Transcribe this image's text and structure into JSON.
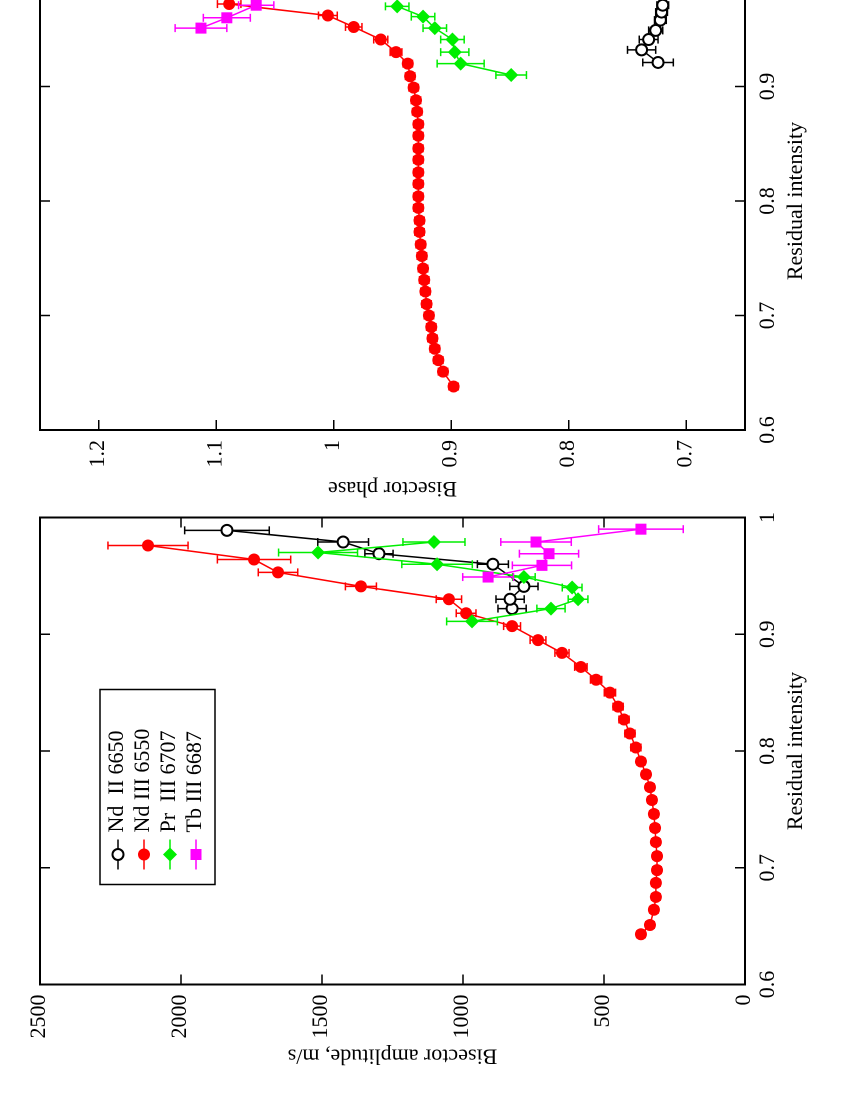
{
  "chart_data": [
    {
      "type": "line",
      "xlabel": "Residual intensity",
      "ylabel": "Bisector amplitude, m/s",
      "xlim": [
        0.6,
        1
      ],
      "xticks": [
        0.6,
        0.7,
        0.8,
        0.9,
        1
      ],
      "ylim": [
        0,
        2500
      ],
      "yticks": [
        0,
        500,
        1000,
        1500,
        2000,
        2500
      ],
      "grid": false,
      "legend": "upper left",
      "series": [
        {
          "name": "Nd  II 6650",
          "color": "#000000",
          "marker": "circle-open",
          "x": [
            0.922,
            0.93,
            0.941,
            0.96,
            0.969,
            0.979,
            0.989
          ],
          "values": [
            826,
            833,
            784,
            894,
            1298,
            1425,
            1837
          ],
          "errors": [
            50,
            50,
            50,
            55,
            50,
            90,
            150
          ]
        },
        {
          "name": "Nd III 6550",
          "color": "#ff0000",
          "marker": "circle",
          "x": [
            0.643,
            0.651,
            0.664,
            0.675,
            0.687,
            0.698,
            0.71,
            0.722,
            0.734,
            0.746,
            0.758,
            0.769,
            0.78,
            0.791,
            0.803,
            0.815,
            0.827,
            0.838,
            0.85,
            0.861,
            0.872,
            0.884,
            0.895,
            0.907,
            0.918,
            0.93,
            0.941,
            0.953,
            0.964,
            0.976
          ],
          "values": [
            369,
            337,
            323,
            316,
            316,
            312,
            312,
            316,
            319,
            323,
            330,
            337,
            351,
            369,
            387,
            408,
            429,
            450,
            479,
            528,
            582,
            649,
            734,
            826,
            989,
            1050,
            1362,
            1656,
            1741,
            2117
          ],
          "errors": [
            15,
            15,
            15,
            15,
            15,
            15,
            15,
            15,
            15,
            15,
            15,
            15,
            15,
            15,
            18,
            18,
            18,
            18,
            20,
            20,
            22,
            25,
            28,
            30,
            35,
            45,
            55,
            70,
            130,
            142
          ]
        },
        {
          "name": "Pr  III 6707",
          "color": "#00ee00",
          "marker": "diamond",
          "x": [
            0.911,
            0.922,
            0.93,
            0.94,
            0.949,
            0.96,
            0.97,
            0.979
          ],
          "values": [
            968,
            688,
            592,
            613,
            784,
            1092,
            1514,
            1103
          ],
          "errors": [
            90,
            50,
            35,
            35,
            40,
            125,
            140,
            110
          ]
        },
        {
          "name": "Tb III 6687",
          "color": "#ff00ff",
          "marker": "square",
          "x": [
            0.949,
            0.959,
            0.969,
            0.979,
            0.99
          ],
          "values": [
            911,
            720,
            695,
            741,
            369
          ],
          "errors": [
            90,
            105,
            105,
            125,
            150
          ]
        }
      ]
    },
    {
      "type": "line",
      "xlabel": "Residual intensity",
      "ylabel": "Bisector phase",
      "xlim": [
        0.6,
        1
      ],
      "xticks": [
        0.6,
        0.7,
        0.8,
        0.9
      ],
      "ylim": [
        0.65,
        1.25
      ],
      "yticks": [
        0.7,
        0.8,
        0.9,
        1,
        1.1,
        1.2
      ],
      "grid": false,
      "series": [
        {
          "color": "#ff0000",
          "marker": "circle",
          "x": [
            0.638,
            0.651,
            0.661,
            0.671,
            0.68,
            0.69,
            0.7,
            0.71,
            0.721,
            0.731,
            0.741,
            0.752,
            0.762,
            0.773,
            0.783,
            0.794,
            0.804,
            0.815,
            0.825,
            0.836,
            0.846,
            0.857,
            0.867,
            0.878,
            0.888,
            0.899,
            0.909,
            0.92,
            0.93,
            0.941,
            0.952,
            0.962,
            0.972
          ],
          "values": [
            0.898,
            0.907,
            0.911,
            0.914,
            0.916,
            0.917,
            0.919,
            0.921,
            0.922,
            0.923,
            0.924,
            0.925,
            0.926,
            0.927,
            0.927,
            0.928,
            0.928,
            0.928,
            0.928,
            0.928,
            0.928,
            0.928,
            0.928,
            0.929,
            0.93,
            0.932,
            0.935,
            0.937,
            0.947,
            0.96,
            0.983,
            1.005,
            1.089
          ],
          "errors": [
            0.004,
            0.004,
            0.004,
            0.004,
            0.004,
            0.004,
            0.004,
            0.004,
            0.004,
            0.004,
            0.004,
            0.004,
            0.004,
            0.004,
            0.004,
            0.004,
            0.004,
            0.004,
            0.004,
            0.004,
            0.004,
            0.004,
            0.004,
            0.004,
            0.004,
            0.004,
            0.004,
            0.004,
            0.005,
            0.006,
            0.007,
            0.008,
            0.01
          ]
        },
        {
          "color": "#00ee00",
          "marker": "diamond",
          "x": [
            0.91,
            0.92,
            0.93,
            0.941,
            0.951,
            0.961,
            0.97
          ],
          "values": [
            0.849,
            0.892,
            0.897,
            0.899,
            0.914,
            0.924,
            0.946
          ],
          "errors": [
            0.013,
            0.02,
            0.012,
            0.01,
            0.01,
            0.01,
            0.01
          ]
        },
        {
          "color": "#ff00ff",
          "marker": "square",
          "x": [
            0.951,
            0.96,
            0.971
          ],
          "values": [
            1.113,
            1.091,
            1.066
          ],
          "errors": [
            0.022,
            0.02,
            0.015
          ]
        },
        {
          "color": "#000000",
          "marker": "circle-open",
          "x": [
            0.921,
            0.932,
            0.941,
            0.949,
            0.958,
            0.965,
            0.971
          ],
          "values": [
            0.724,
            0.738,
            0.732,
            0.726,
            0.722,
            0.721,
            0.72
          ],
          "errors": [
            0.013,
            0.012,
            0.008,
            0.006,
            0.005,
            0.005,
            0.005
          ]
        }
      ]
    }
  ]
}
